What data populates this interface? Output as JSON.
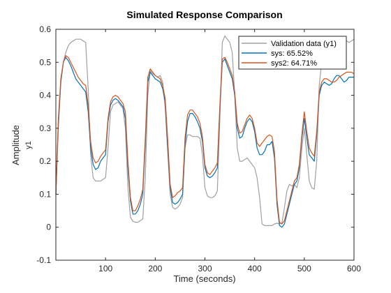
{
  "chart_data": {
    "type": "line",
    "title": "Simulated Response Comparison",
    "xlabel": "Time (seconds)",
    "ylabel": "Amplitude",
    "ylabel_sub": "y1",
    "xlim": [
      0,
      600
    ],
    "ylim": [
      -0.1,
      0.6
    ],
    "xticks": [
      100,
      200,
      300,
      400,
      500,
      600
    ],
    "yticks": [
      -0.1,
      0,
      0.1,
      0.2,
      0.3,
      0.4,
      0.5,
      0.6
    ],
    "grid": false,
    "legend_position": "top-right",
    "series": [
      {
        "name": "Validation data (y1)",
        "color": "#a0a0a0",
        "x": [
          0,
          5,
          10,
          15,
          20,
          25,
          30,
          35,
          40,
          45,
          50,
          55,
          60,
          65,
          70,
          75,
          80,
          85,
          90,
          95,
          100,
          105,
          110,
          115,
          120,
          125,
          130,
          135,
          140,
          145,
          150,
          155,
          160,
          165,
          170,
          175,
          180,
          185,
          190,
          195,
          200,
          205,
          210,
          215,
          220,
          225,
          230,
          235,
          240,
          245,
          250,
          255,
          260,
          265,
          270,
          275,
          280,
          285,
          290,
          295,
          300,
          305,
          310,
          315,
          320,
          325,
          330,
          335,
          340,
          345,
          350,
          355,
          360,
          365,
          370,
          375,
          380,
          385,
          390,
          395,
          400,
          405,
          410,
          415,
          420,
          425,
          430,
          435,
          440,
          445,
          450,
          455,
          460,
          465,
          470,
          475,
          480,
          485,
          490,
          495,
          500,
          505,
          510,
          515,
          520,
          525,
          530,
          535,
          540,
          545,
          550,
          555,
          560,
          565,
          570,
          575,
          580,
          585,
          590,
          595,
          600
        ],
        "y": [
          0.1,
          0.3,
          0.44,
          0.5,
          0.53,
          0.55,
          0.56,
          0.565,
          0.57,
          0.57,
          0.57,
          0.565,
          0.56,
          0.42,
          0.22,
          0.15,
          0.14,
          0.14,
          0.14,
          0.145,
          0.15,
          0.24,
          0.35,
          0.37,
          0.375,
          0.38,
          0.37,
          0.36,
          0.3,
          0.12,
          0.03,
          0.018,
          0.015,
          0.015,
          0.02,
          0.025,
          0.15,
          0.4,
          0.475,
          0.465,
          0.46,
          0.455,
          0.46,
          0.44,
          0.36,
          0.23,
          0.1,
          0.06,
          0.055,
          0.06,
          0.07,
          0.09,
          0.24,
          0.28,
          0.28,
          0.275,
          0.275,
          0.275,
          0.27,
          0.22,
          0.12,
          0.095,
          0.09,
          0.09,
          0.095,
          0.11,
          0.33,
          0.56,
          0.58,
          0.57,
          0.56,
          0.53,
          0.4,
          0.24,
          0.2,
          0.2,
          0.205,
          0.21,
          0.2,
          0.19,
          0.18,
          0.15,
          0.09,
          0.01,
          0.005,
          0.005,
          0.005,
          0.005,
          0.01,
          0.012,
          0.01,
          0.012,
          0.06,
          0.11,
          0.13,
          0.125,
          0.13,
          0.12,
          0.15,
          0.24,
          0.3,
          0.22,
          0.14,
          0.12,
          0.115,
          0.2,
          0.43,
          0.5,
          0.53,
          0.545,
          0.55,
          0.555,
          0.56,
          0.56,
          0.555,
          0.545,
          0.555,
          0.565,
          0.56,
          0.565,
          0.57
        ]
      },
      {
        "name": "sys: 65.52%",
        "color": "#0072bd",
        "x": [
          0,
          5,
          10,
          15,
          20,
          25,
          30,
          35,
          40,
          45,
          50,
          55,
          60,
          65,
          70,
          75,
          80,
          85,
          90,
          95,
          100,
          105,
          110,
          115,
          120,
          125,
          130,
          135,
          140,
          145,
          150,
          155,
          160,
          165,
          170,
          175,
          180,
          185,
          190,
          195,
          200,
          205,
          210,
          215,
          220,
          225,
          230,
          235,
          240,
          245,
          250,
          255,
          260,
          265,
          270,
          275,
          280,
          285,
          290,
          295,
          300,
          305,
          310,
          315,
          320,
          325,
          330,
          335,
          340,
          345,
          350,
          355,
          360,
          365,
          370,
          375,
          380,
          385,
          390,
          395,
          400,
          405,
          410,
          415,
          420,
          425,
          430,
          435,
          440,
          445,
          450,
          455,
          460,
          465,
          470,
          475,
          480,
          485,
          490,
          495,
          500,
          505,
          510,
          515,
          520,
          525,
          530,
          535,
          540,
          545,
          550,
          555,
          560,
          565,
          570,
          575,
          580,
          585,
          590,
          595,
          600
        ],
        "y": [
          0.1,
          0.32,
          0.44,
          0.5,
          0.515,
          0.505,
          0.49,
          0.47,
          0.45,
          0.44,
          0.43,
          0.42,
          0.41,
          0.35,
          0.24,
          0.19,
          0.175,
          0.18,
          0.2,
          0.21,
          0.22,
          0.32,
          0.37,
          0.385,
          0.39,
          0.385,
          0.375,
          0.365,
          0.33,
          0.18,
          0.08,
          0.04,
          0.04,
          0.05,
          0.07,
          0.1,
          0.25,
          0.44,
          0.47,
          0.46,
          0.45,
          0.445,
          0.44,
          0.42,
          0.38,
          0.25,
          0.12,
          0.075,
          0.07,
          0.075,
          0.085,
          0.1,
          0.25,
          0.32,
          0.345,
          0.345,
          0.335,
          0.32,
          0.3,
          0.26,
          0.18,
          0.155,
          0.15,
          0.155,
          0.165,
          0.18,
          0.36,
          0.5,
          0.51,
          0.49,
          0.47,
          0.45,
          0.4,
          0.3,
          0.27,
          0.275,
          0.3,
          0.32,
          0.33,
          0.32,
          0.29,
          0.24,
          0.22,
          0.22,
          0.23,
          0.25,
          0.25,
          0.26,
          0.21,
          0.07,
          0.005,
          0.0,
          0.01,
          0.04,
          0.07,
          0.1,
          0.13,
          0.14,
          0.18,
          0.27,
          0.33,
          0.27,
          0.22,
          0.21,
          0.2,
          0.28,
          0.4,
          0.43,
          0.44,
          0.435,
          0.43,
          0.435,
          0.45,
          0.46,
          0.46,
          0.45,
          0.44,
          0.445,
          0.455,
          0.455,
          0.455
        ]
      },
      {
        "name": "sys2: 64.71%",
        "color": "#d95319",
        "x": [
          0,
          5,
          10,
          15,
          20,
          25,
          30,
          35,
          40,
          45,
          50,
          55,
          60,
          65,
          70,
          75,
          80,
          85,
          90,
          95,
          100,
          105,
          110,
          115,
          120,
          125,
          130,
          135,
          140,
          145,
          150,
          155,
          160,
          165,
          170,
          175,
          180,
          185,
          190,
          195,
          200,
          205,
          210,
          215,
          220,
          225,
          230,
          235,
          240,
          245,
          250,
          255,
          260,
          265,
          270,
          275,
          280,
          285,
          290,
          295,
          300,
          305,
          310,
          315,
          320,
          325,
          330,
          335,
          340,
          345,
          350,
          355,
          360,
          365,
          370,
          375,
          380,
          385,
          390,
          395,
          400,
          405,
          410,
          415,
          420,
          425,
          430,
          435,
          440,
          445,
          450,
          455,
          460,
          465,
          470,
          475,
          480,
          485,
          490,
          495,
          500,
          505,
          510,
          515,
          520,
          525,
          530,
          535,
          540,
          545,
          550,
          555,
          560,
          565,
          570,
          575,
          580,
          585,
          590,
          595,
          600
        ],
        "y": [
          0.1,
          0.33,
          0.45,
          0.5,
          0.52,
          0.515,
          0.5,
          0.485,
          0.47,
          0.455,
          0.445,
          0.435,
          0.43,
          0.37,
          0.26,
          0.21,
          0.195,
          0.2,
          0.215,
          0.225,
          0.235,
          0.33,
          0.38,
          0.395,
          0.4,
          0.395,
          0.385,
          0.375,
          0.35,
          0.2,
          0.09,
          0.05,
          0.05,
          0.065,
          0.085,
          0.115,
          0.27,
          0.455,
          0.48,
          0.47,
          0.46,
          0.455,
          0.45,
          0.43,
          0.39,
          0.27,
          0.13,
          0.09,
          0.095,
          0.105,
          0.11,
          0.12,
          0.27,
          0.34,
          0.355,
          0.355,
          0.345,
          0.335,
          0.315,
          0.275,
          0.19,
          0.165,
          0.16,
          0.17,
          0.18,
          0.195,
          0.37,
          0.51,
          0.515,
          0.5,
          0.48,
          0.46,
          0.41,
          0.315,
          0.285,
          0.29,
          0.31,
          0.33,
          0.34,
          0.33,
          0.3,
          0.255,
          0.245,
          0.255,
          0.265,
          0.275,
          0.28,
          0.275,
          0.23,
          0.085,
          0.015,
          0.01,
          0.02,
          0.05,
          0.08,
          0.11,
          0.14,
          0.15,
          0.19,
          0.28,
          0.35,
          0.29,
          0.24,
          0.225,
          0.215,
          0.29,
          0.41,
          0.44,
          0.45,
          0.45,
          0.445,
          0.44,
          0.44,
          0.445,
          0.455,
          0.46,
          0.465,
          0.47,
          0.47,
          0.47,
          0.465
        ]
      }
    ]
  }
}
